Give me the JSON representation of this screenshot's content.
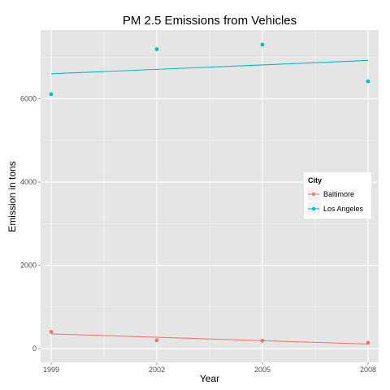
{
  "chart_data": {
    "type": "scatter",
    "title": "PM 2.5 Emissions from Vehicles",
    "xlabel": "Year",
    "ylabel": "Emission in tons",
    "x_ticks": [
      1999,
      2002,
      2005,
      2008
    ],
    "y_ticks": [
      0,
      2000,
      4000,
      6000
    ],
    "xlim": [
      1998.7,
      2008.3
    ],
    "ylim": [
      -330,
      7650
    ],
    "grid": true,
    "legend": {
      "title": "City",
      "placement": "right-inside"
    },
    "series": [
      {
        "name": "Baltimore",
        "color": "#F8766D",
        "x": [
          1999,
          2002,
          2005,
          2008
        ],
        "values": [
          404,
          200,
          190,
          140
        ],
        "trend": [
          355,
          110
        ]
      },
      {
        "name": "Los Angeles",
        "color": "#00BFC4",
        "x": [
          1999,
          2002,
          2005,
          2008
        ],
        "values": [
          6110,
          7190,
          7300,
          6420
        ],
        "trend": [
          6600,
          6920
        ]
      }
    ]
  }
}
